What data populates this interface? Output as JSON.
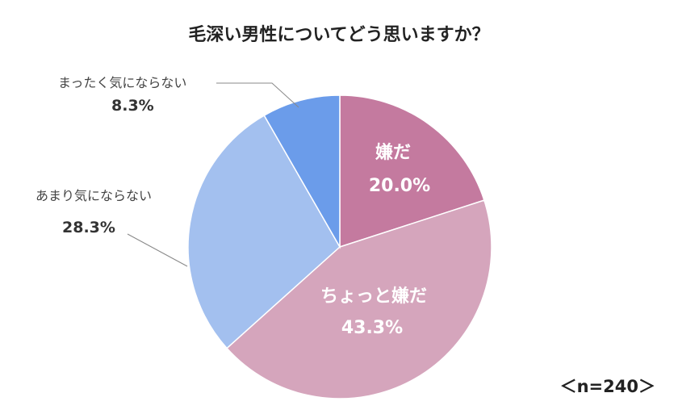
{
  "chart_data": {
    "type": "pie",
    "title": "毛深い男性についてどう思いますか？",
    "note": "＜n=240＞",
    "slices": [
      {
        "label": "嫌だ",
        "value": 20.0,
        "pct_label": "20.0%",
        "color": "#c47a9f"
      },
      {
        "label": "ちょっと嫌だ",
        "value": 43.3,
        "pct_label": "43.3%",
        "color": "#d5a5bc"
      },
      {
        "label": "あまり気にならない",
        "value": 28.3,
        "pct_label": "28.3%",
        "color": "#a3c0ef"
      },
      {
        "label": "まったく気にならない",
        "value": 8.3,
        "pct_label": "8.3%",
        "color": "#6b9cea"
      }
    ]
  }
}
